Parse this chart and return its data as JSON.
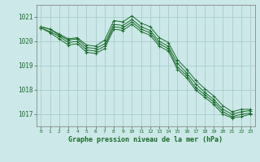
{
  "xlabel": "Graphe pression niveau de la mer (hPa)",
  "background_color": "#cce8e8",
  "grid_color": "#aacccc",
  "line_color": "#1a6b2a",
  "ylim": [
    1016.5,
    1021.5
  ],
  "xlim": [
    -0.5,
    23.5
  ],
  "yticks": [
    1017,
    1018,
    1019,
    1020,
    1021
  ],
  "xticks": [
    0,
    1,
    2,
    3,
    4,
    5,
    6,
    7,
    8,
    9,
    10,
    11,
    12,
    13,
    14,
    15,
    16,
    17,
    18,
    19,
    20,
    21,
    22,
    23
  ],
  "series": [
    [
      1020.6,
      1020.5,
      1020.3,
      1020.1,
      1020.15,
      1019.85,
      1019.8,
      1020.05,
      1020.85,
      1020.8,
      1021.05,
      1020.75,
      1020.6,
      1020.15,
      1019.95,
      1019.25,
      1018.85,
      1018.4,
      1018.05,
      1017.75,
      1017.35,
      1017.1,
      1017.2,
      1017.2
    ],
    [
      1020.6,
      1020.5,
      1020.25,
      1020.05,
      1020.1,
      1019.75,
      1019.7,
      1019.9,
      1020.7,
      1020.65,
      1020.9,
      1020.6,
      1020.45,
      1020.0,
      1019.8,
      1019.1,
      1018.7,
      1018.25,
      1017.9,
      1017.6,
      1017.2,
      1017.0,
      1017.1,
      1017.15
    ],
    [
      1020.55,
      1020.4,
      1020.2,
      1019.95,
      1020.0,
      1019.65,
      1019.6,
      1019.8,
      1020.6,
      1020.55,
      1020.8,
      1020.5,
      1020.35,
      1019.9,
      1019.7,
      1018.95,
      1018.6,
      1018.1,
      1017.8,
      1017.5,
      1017.1,
      1016.9,
      1017.0,
      1017.05
    ],
    [
      1020.55,
      1020.35,
      1020.1,
      1019.85,
      1019.9,
      1019.55,
      1019.5,
      1019.7,
      1020.5,
      1020.45,
      1020.7,
      1020.4,
      1020.25,
      1019.8,
      1019.6,
      1018.85,
      1018.5,
      1018.0,
      1017.7,
      1017.4,
      1017.0,
      1016.85,
      1016.9,
      1017.0
    ]
  ]
}
